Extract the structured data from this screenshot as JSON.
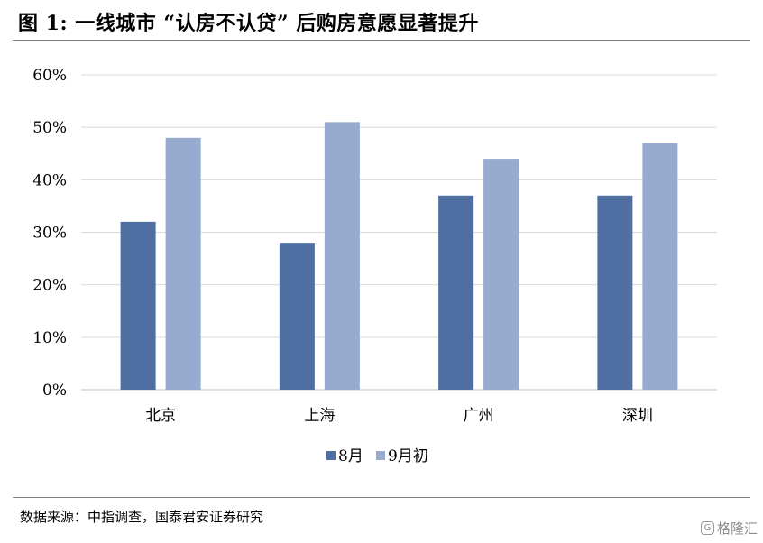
{
  "title": "图 1:  一线城市 “认房不认贷” 后购房意愿显著提升",
  "source": "数据来源：中指调查，国泰君安证券研究",
  "watermark": {
    "logo_icon": "gelonghui-logo-icon",
    "text": "格隆汇"
  },
  "colors": {
    "series_8": "#4f6fa3",
    "series_9": "#97abce",
    "grid": "#d9d9d9",
    "axis": "#bfbfbf"
  },
  "chart_data": {
    "type": "bar",
    "categories": [
      "北京",
      "上海",
      "广州",
      "深圳"
    ],
    "series": [
      {
        "name": "8月",
        "values": [
          32,
          28,
          37,
          37
        ],
        "color": "#4f6fa3"
      },
      {
        "name": "9月初",
        "values": [
          48,
          51,
          44,
          47
        ],
        "color": "#97abce"
      }
    ],
    "y_ticks": [
      "0%",
      "10%",
      "20%",
      "30%",
      "40%",
      "50%",
      "60%"
    ],
    "ylim": [
      0,
      60
    ],
    "y_unit": "%",
    "grid": true,
    "legend_position": "bottom"
  }
}
